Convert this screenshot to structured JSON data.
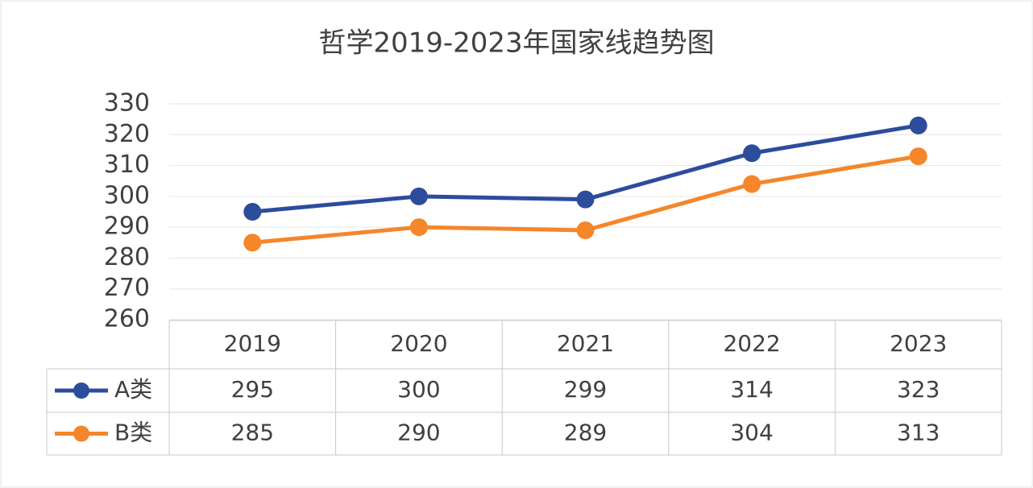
{
  "chart_data": {
    "type": "line",
    "title": "哲学2019-2023年国家线趋势图",
    "categories": [
      "2019",
      "2020",
      "2021",
      "2022",
      "2023"
    ],
    "series": [
      {
        "name": "A类",
        "color": "#2c4c9c",
        "values": [
          295,
          300,
          299,
          314,
          323
        ]
      },
      {
        "name": "B类",
        "color": "#f5862a",
        "values": [
          285,
          290,
          289,
          304,
          313
        ]
      }
    ],
    "ylim": [
      260,
      330
    ],
    "yticks": [
      260,
      270,
      280,
      290,
      300,
      310,
      320,
      330
    ],
    "grid": true
  }
}
